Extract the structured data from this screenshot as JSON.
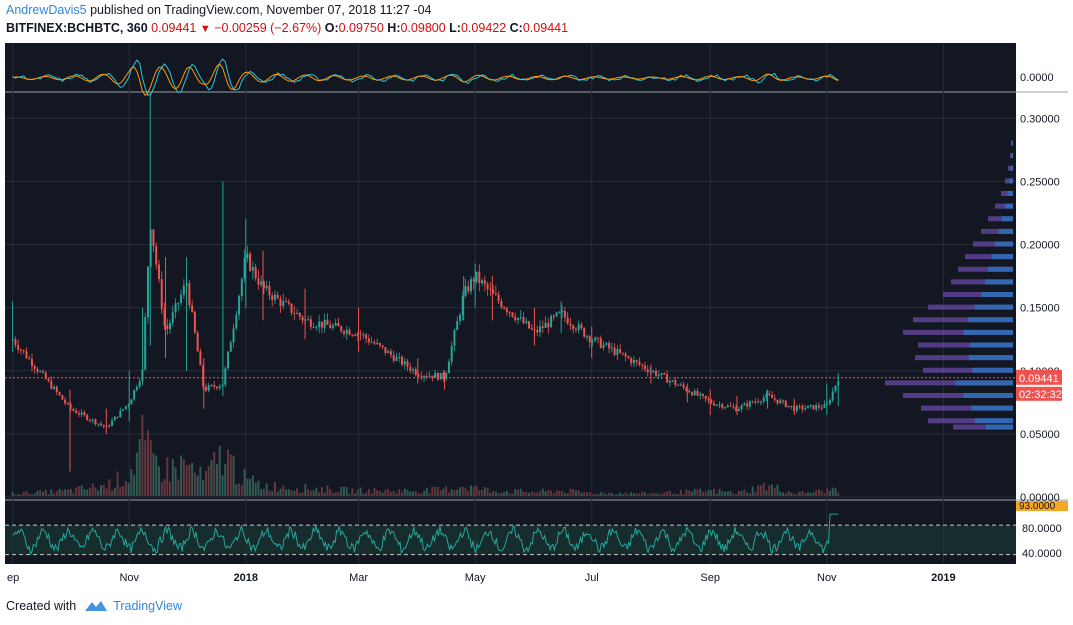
{
  "header": {
    "author": "AndrewDavis5",
    "published_text": " published on TradingView.com, November 07, 2018 11:27 -04"
  },
  "quote": {
    "symbol": "BITFINEX:BCHBTC, 360",
    "last": "0.09441",
    "change": "−0.00259 (−2.67%)",
    "o_label": "O:",
    "o": "0.09750",
    "h_label": "H:",
    "h": "0.09800",
    "l_label": "L:",
    "l": "0.09422",
    "c_label": "C:",
    "c": "0.09441"
  },
  "footer": {
    "created_with": "Created with",
    "brand": "TradingView"
  },
  "colors": {
    "background": "#131722",
    "up": "#26a69a",
    "down": "#ef5350",
    "price_line": "#ef5350",
    "rsi": "#26a69a",
    "volume_profile_up": "#2f6fb8",
    "volume_profile_down": "#6a4aa8",
    "brand": "#2f87d9"
  },
  "chart_data": [
    {
      "type": "line",
      "panel": "oscillator",
      "ylabel_ticks": [
        "0.0000"
      ]
    },
    {
      "type": "candlestick",
      "panel": "price",
      "x_ticks": [
        "ep",
        "Nov",
        "2018",
        "Mar",
        "May",
        "Jul",
        "Sep",
        "Nov",
        "2019"
      ],
      "y_ticks": [
        0.3,
        0.25,
        0.2,
        0.15,
        0.1,
        0.05,
        0.0
      ],
      "y_tick_labels": [
        "0.30000",
        "0.25000",
        "0.20000",
        "0.15000",
        "0.10000",
        "0.05000",
        "0.00000"
      ],
      "ylim": [
        0,
        0.32
      ],
      "last_price": 0.09441,
      "last_price_label": "0.09441",
      "countdown": "02:32:32",
      "x_dates": [
        "2017-09-01",
        "2017-10-01",
        "2017-10-20",
        "2017-11-01",
        "2017-11-08",
        "2017-11-12",
        "2017-11-20",
        "2017-12-01",
        "2017-12-10",
        "2017-12-20",
        "2018-01-01",
        "2018-01-10",
        "2018-02-01",
        "2018-03-01",
        "2018-04-01",
        "2018-04-15",
        "2018-04-25",
        "2018-05-01",
        "2018-05-10",
        "2018-06-01",
        "2018-06-15",
        "2018-07-01",
        "2018-08-01",
        "2018-08-20",
        "2018-09-01",
        "2018-09-15",
        "2018-10-01",
        "2018-10-15",
        "2018-11-01",
        "2018-11-07"
      ],
      "close": [
        0.125,
        0.07,
        0.055,
        0.075,
        0.1,
        0.22,
        0.13,
        0.17,
        0.085,
        0.09,
        0.19,
        0.165,
        0.14,
        0.13,
        0.098,
        0.095,
        0.16,
        0.175,
        0.16,
        0.13,
        0.145,
        0.125,
        0.1,
        0.085,
        0.075,
        0.07,
        0.08,
        0.07,
        0.072,
        0.0944
      ],
      "high": [
        0.155,
        0.085,
        0.07,
        0.1,
        0.15,
        0.32,
        0.19,
        0.19,
        0.11,
        0.25,
        0.22,
        0.195,
        0.165,
        0.15,
        0.11,
        0.1,
        0.175,
        0.185,
        0.175,
        0.15,
        0.155,
        0.135,
        0.105,
        0.09,
        0.085,
        0.08,
        0.085,
        0.078,
        0.09,
        0.098
      ],
      "low": [
        0.115,
        0.02,
        0.05,
        0.06,
        0.09,
        0.12,
        0.11,
        0.1,
        0.07,
        0.08,
        0.15,
        0.14,
        0.125,
        0.115,
        0.09,
        0.085,
        0.14,
        0.15,
        0.14,
        0.12,
        0.13,
        0.11,
        0.09,
        0.075,
        0.065,
        0.065,
        0.07,
        0.065,
        0.065,
        0.072
      ]
    },
    {
      "type": "bar",
      "panel": "volume",
      "note_values": "relative volume spikes",
      "values": [
        0.05,
        0.1,
        0.2,
        0.4,
        1.0,
        0.7,
        0.5,
        0.6,
        0.3,
        0.8,
        0.3,
        0.2,
        0.15,
        0.1,
        0.1,
        0.12,
        0.2,
        0.15,
        0.1,
        0.08,
        0.1,
        0.06,
        0.05,
        0.08,
        0.1,
        0.06,
        0.2,
        0.05,
        0.1,
        0.15
      ]
    },
    {
      "type": "line",
      "panel": "rsi",
      "y_tick_labels": [
        "80.0000",
        "40.0000"
      ],
      "last_label": "93.0000",
      "upper_band": 70,
      "lower_band": 30,
      "ylim": [
        20,
        100
      ]
    }
  ]
}
